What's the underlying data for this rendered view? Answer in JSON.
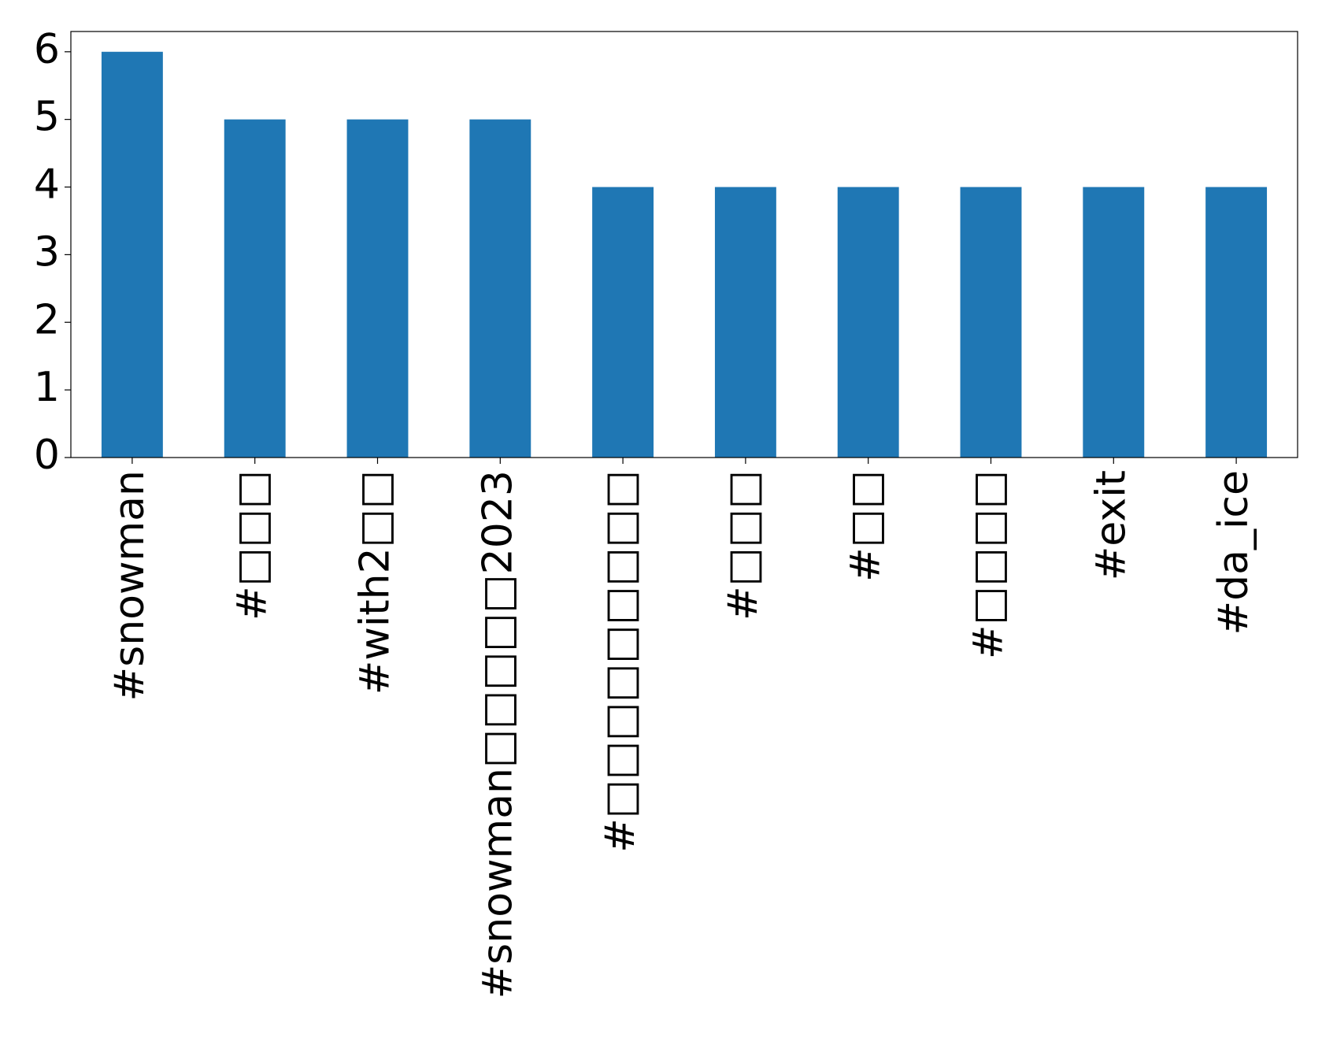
{
  "chart_data": {
    "type": "bar",
    "categories": [
      "#snowman",
      "#□□□",
      "#with2□□",
      "#snowman□□□□□2023",
      "#□□□□□□□□□",
      "#□□□",
      "#□□",
      "#□□□□",
      "#exit",
      "#da_ice"
    ],
    "values": [
      6,
      5,
      5,
      5,
      4,
      4,
      4,
      4,
      4,
      4
    ],
    "color": "#1f77b4",
    "ylim": [
      0,
      6.3
    ],
    "yticks": [
      0,
      1,
      2,
      3,
      4,
      5,
      6
    ],
    "grid": false
  }
}
